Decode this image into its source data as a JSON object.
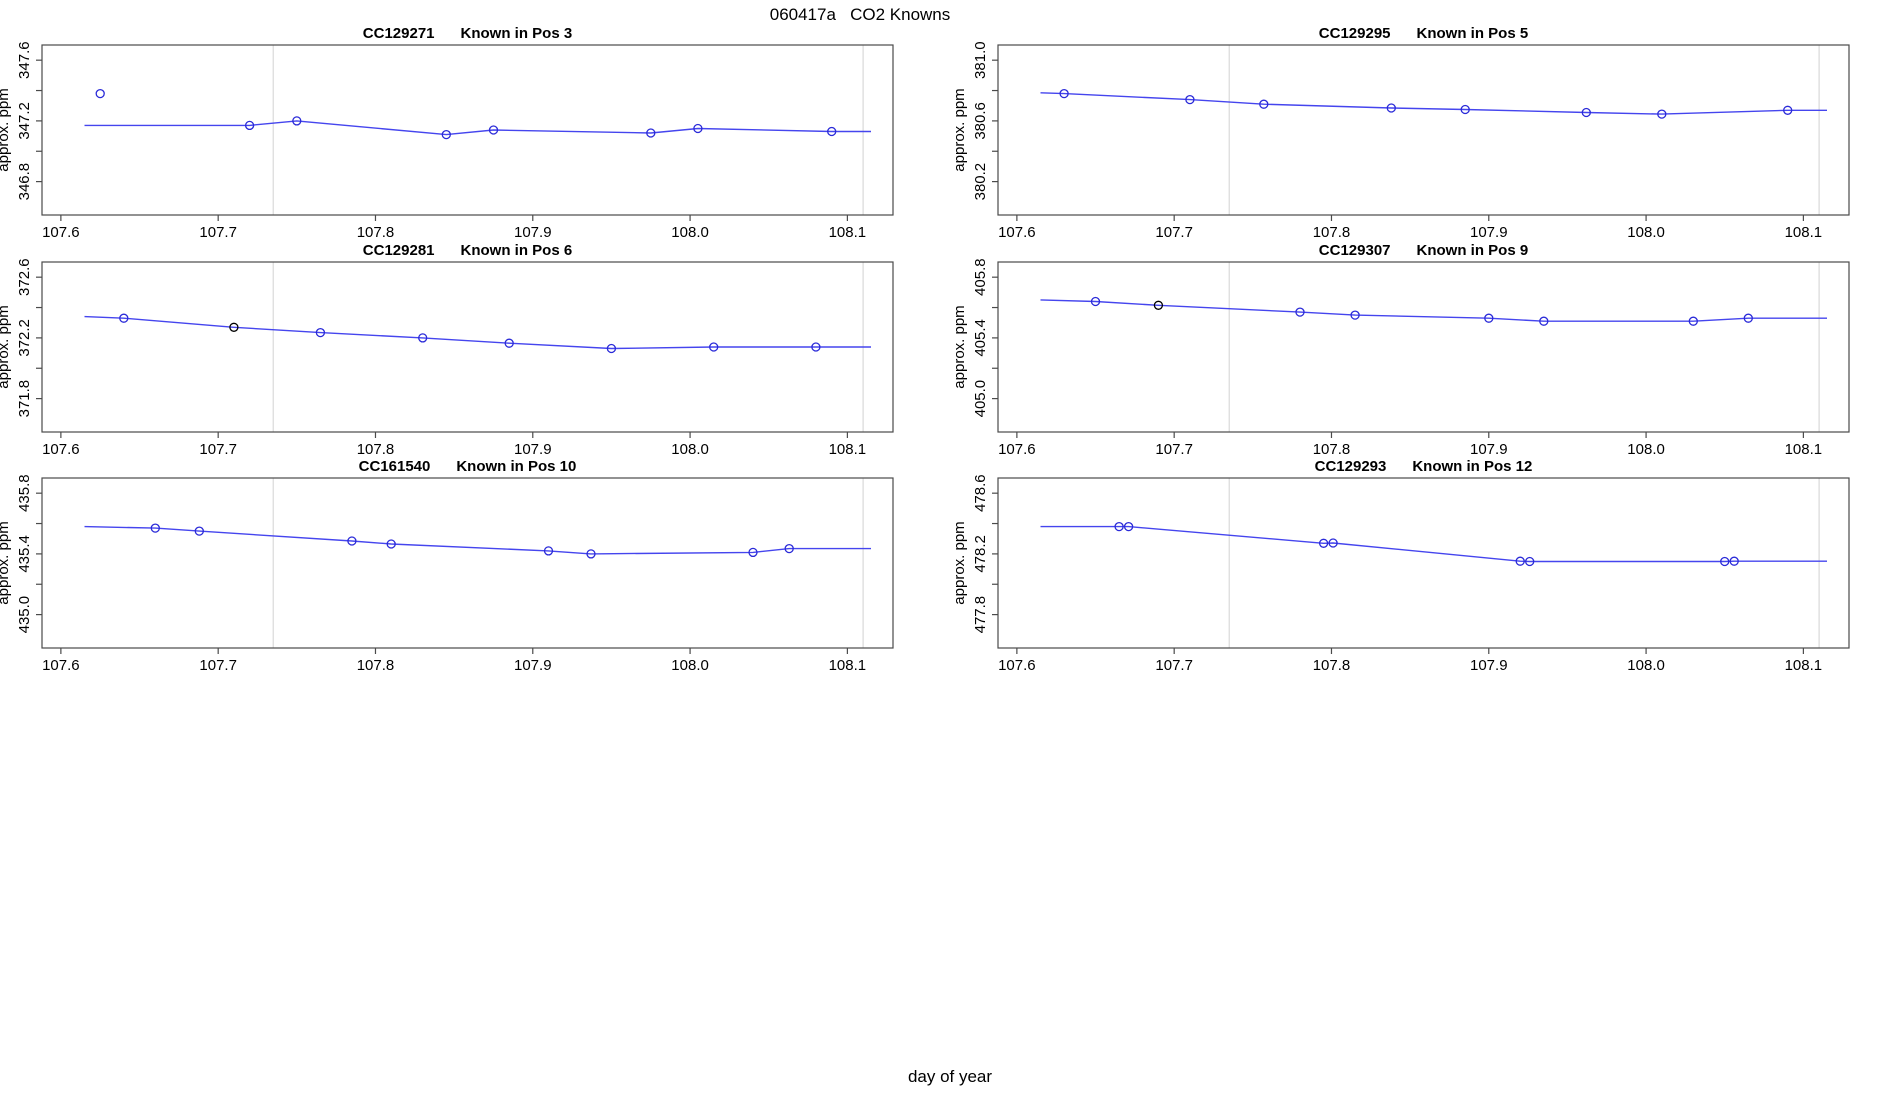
{
  "page": {
    "title": "060417a   CO2 Knowns",
    "x_axis_label": "day of year"
  },
  "colors": {
    "line": "#4545ee",
    "point": "#2a2ad8",
    "black_point": "#000000",
    "gridline": "#d9d9d9",
    "axis": "#4a4a4a",
    "text": "#000000"
  },
  "chart_data": [
    {
      "type": "line",
      "title_id": "CC129271",
      "title_pos": "Known in Pos 3",
      "ylabel": "approx. ppm",
      "xlim": [
        107.588,
        108.129
      ],
      "ylim": [
        346.58,
        347.7
      ],
      "xticks": [
        107.6,
        107.7,
        107.8,
        107.9,
        108.0,
        108.1
      ],
      "yticks": [
        346.8,
        347.0,
        347.2,
        347.4,
        347.6
      ],
      "ytick_labels_shown": [
        346.8,
        347.2,
        347.6
      ],
      "vlines": [
        107.735,
        108.11
      ],
      "line": [
        [
          107.615,
          347.17
        ],
        [
          107.72,
          347.17
        ],
        [
          107.75,
          347.2
        ],
        [
          107.845,
          347.11
        ],
        [
          107.875,
          347.14
        ],
        [
          107.975,
          347.12
        ],
        [
          108.005,
          347.15
        ],
        [
          108.09,
          347.13
        ],
        [
          108.115,
          347.13
        ]
      ],
      "points": [
        [
          107.625,
          347.38
        ],
        [
          107.72,
          347.17
        ],
        [
          107.75,
          347.2
        ],
        [
          107.845,
          347.11
        ],
        [
          107.875,
          347.14
        ],
        [
          107.975,
          347.12
        ],
        [
          108.005,
          347.15
        ],
        [
          108.09,
          347.13
        ]
      ],
      "black_points": []
    },
    {
      "type": "line",
      "title_id": "CC129295",
      "title_pos": "Known in Pos 5",
      "ylabel": "approx. ppm",
      "xlim": [
        107.588,
        108.129
      ],
      "ylim": [
        379.98,
        381.1
      ],
      "xticks": [
        107.6,
        107.7,
        107.8,
        107.9,
        108.0,
        108.1
      ],
      "yticks": [
        380.2,
        380.4,
        380.6,
        380.8,
        381.0
      ],
      "ytick_labels_shown": [
        380.2,
        380.6,
        381.0
      ],
      "vlines": [
        107.735,
        108.11
      ],
      "line": [
        [
          107.615,
          380.785
        ],
        [
          107.63,
          380.78
        ],
        [
          107.71,
          380.74
        ],
        [
          107.757,
          380.71
        ],
        [
          107.838,
          380.685
        ],
        [
          107.885,
          380.675
        ],
        [
          107.962,
          380.655
        ],
        [
          108.01,
          380.645
        ],
        [
          108.09,
          380.67
        ],
        [
          108.115,
          380.67
        ]
      ],
      "points": [
        [
          107.63,
          380.78
        ],
        [
          107.71,
          380.74
        ],
        [
          107.757,
          380.71
        ],
        [
          107.838,
          380.685
        ],
        [
          107.885,
          380.675
        ],
        [
          107.962,
          380.655
        ],
        [
          108.01,
          380.645
        ],
        [
          108.09,
          380.67
        ]
      ],
      "black_points": []
    },
    {
      "type": "line",
      "title_id": "CC129281",
      "title_pos": "Known in Pos 6",
      "ylabel": "approx. ppm",
      "xlim": [
        107.588,
        108.129
      ],
      "ylim": [
        371.58,
        372.7
      ],
      "xticks": [
        107.6,
        107.7,
        107.8,
        107.9,
        108.0,
        108.1
      ],
      "yticks": [
        371.8,
        372.0,
        372.2,
        372.4,
        372.6
      ],
      "ytick_labels_shown": [
        371.8,
        372.2,
        372.6
      ],
      "vlines": [
        107.735,
        108.11
      ],
      "line": [
        [
          107.615,
          372.34
        ],
        [
          107.64,
          372.33
        ],
        [
          107.71,
          372.27
        ],
        [
          107.765,
          372.235
        ],
        [
          107.83,
          372.2
        ],
        [
          107.885,
          372.165
        ],
        [
          107.95,
          372.13
        ],
        [
          108.015,
          372.14
        ],
        [
          108.08,
          372.14
        ],
        [
          108.115,
          372.14
        ]
      ],
      "points": [
        [
          107.64,
          372.33
        ],
        [
          107.765,
          372.235
        ],
        [
          107.83,
          372.2
        ],
        [
          107.885,
          372.165
        ],
        [
          107.95,
          372.13
        ],
        [
          108.015,
          372.14
        ],
        [
          108.08,
          372.14
        ]
      ],
      "black_points": [
        [
          107.71,
          372.27
        ]
      ]
    },
    {
      "type": "line",
      "title_id": "CC129307",
      "title_pos": "Known in Pos 9",
      "ylabel": "approx. ppm",
      "xlim": [
        107.588,
        108.129
      ],
      "ylim": [
        404.78,
        405.9
      ],
      "xticks": [
        107.6,
        107.7,
        107.8,
        107.9,
        108.0,
        108.1
      ],
      "yticks": [
        405.0,
        405.2,
        405.4,
        405.6,
        405.8
      ],
      "ytick_labels_shown": [
        405.0,
        405.4,
        405.8
      ],
      "vlines": [
        107.735,
        108.11
      ],
      "line": [
        [
          107.615,
          405.65
        ],
        [
          107.65,
          405.64
        ],
        [
          107.69,
          405.615
        ],
        [
          107.78,
          405.57
        ],
        [
          107.815,
          405.55
        ],
        [
          107.9,
          405.53
        ],
        [
          107.935,
          405.51
        ],
        [
          108.03,
          405.51
        ],
        [
          108.065,
          405.53
        ],
        [
          108.115,
          405.53
        ]
      ],
      "points": [
        [
          107.65,
          405.64
        ],
        [
          107.78,
          405.57
        ],
        [
          107.815,
          405.55
        ],
        [
          107.9,
          405.53
        ],
        [
          107.935,
          405.51
        ],
        [
          108.03,
          405.51
        ],
        [
          108.065,
          405.53
        ]
      ],
      "black_points": [
        [
          107.69,
          405.615
        ]
      ]
    },
    {
      "type": "line",
      "title_id": "CC161540",
      "title_pos": "Known in Pos 10",
      "ylabel": "approx. ppm",
      "xlim": [
        107.588,
        108.129
      ],
      "ylim": [
        434.78,
        435.9
      ],
      "xticks": [
        107.6,
        107.7,
        107.8,
        107.9,
        108.0,
        108.1
      ],
      "yticks": [
        435.0,
        435.2,
        435.4,
        435.6,
        435.8
      ],
      "ytick_labels_shown": [
        435.0,
        435.4,
        435.8
      ],
      "vlines": [
        107.735,
        108.11
      ],
      "line": [
        [
          107.615,
          435.58
        ],
        [
          107.66,
          435.57
        ],
        [
          107.688,
          435.55
        ],
        [
          107.785,
          435.485
        ],
        [
          107.81,
          435.465
        ],
        [
          107.91,
          435.42
        ],
        [
          107.937,
          435.4
        ],
        [
          108.04,
          435.41
        ],
        [
          108.063,
          435.435
        ],
        [
          108.115,
          435.435
        ]
      ],
      "points": [
        [
          107.66,
          435.57
        ],
        [
          107.688,
          435.55
        ],
        [
          107.785,
          435.485
        ],
        [
          107.81,
          435.465
        ],
        [
          107.91,
          435.42
        ],
        [
          107.937,
          435.4
        ],
        [
          108.04,
          435.41
        ],
        [
          108.063,
          435.435
        ]
      ],
      "black_points": []
    },
    {
      "type": "line",
      "title_id": "CC129293",
      "title_pos": "Known in Pos 12",
      "ylabel": "approx. ppm",
      "xlim": [
        107.588,
        108.129
      ],
      "ylim": [
        477.58,
        478.7
      ],
      "xticks": [
        107.6,
        107.7,
        107.8,
        107.9,
        108.0,
        108.1
      ],
      "yticks": [
        477.8,
        478.0,
        478.2,
        478.4,
        478.6
      ],
      "ytick_labels_shown": [
        477.8,
        478.2,
        478.6
      ],
      "vlines": [
        107.735,
        108.11
      ],
      "line": [
        [
          107.615,
          478.38
        ],
        [
          107.665,
          478.38
        ],
        [
          107.671,
          478.38
        ],
        [
          107.795,
          478.27
        ],
        [
          107.801,
          478.272
        ],
        [
          107.92,
          478.152
        ],
        [
          107.926,
          478.15
        ],
        [
          108.05,
          478.15
        ],
        [
          108.056,
          478.152
        ],
        [
          108.115,
          478.152
        ]
      ],
      "points": [
        [
          107.665,
          478.38
        ],
        [
          107.671,
          478.38
        ],
        [
          107.795,
          478.27
        ],
        [
          107.801,
          478.272
        ],
        [
          107.92,
          478.152
        ],
        [
          107.926,
          478.15
        ],
        [
          108.05,
          478.15
        ],
        [
          108.056,
          478.152
        ]
      ],
      "black_points": []
    }
  ]
}
